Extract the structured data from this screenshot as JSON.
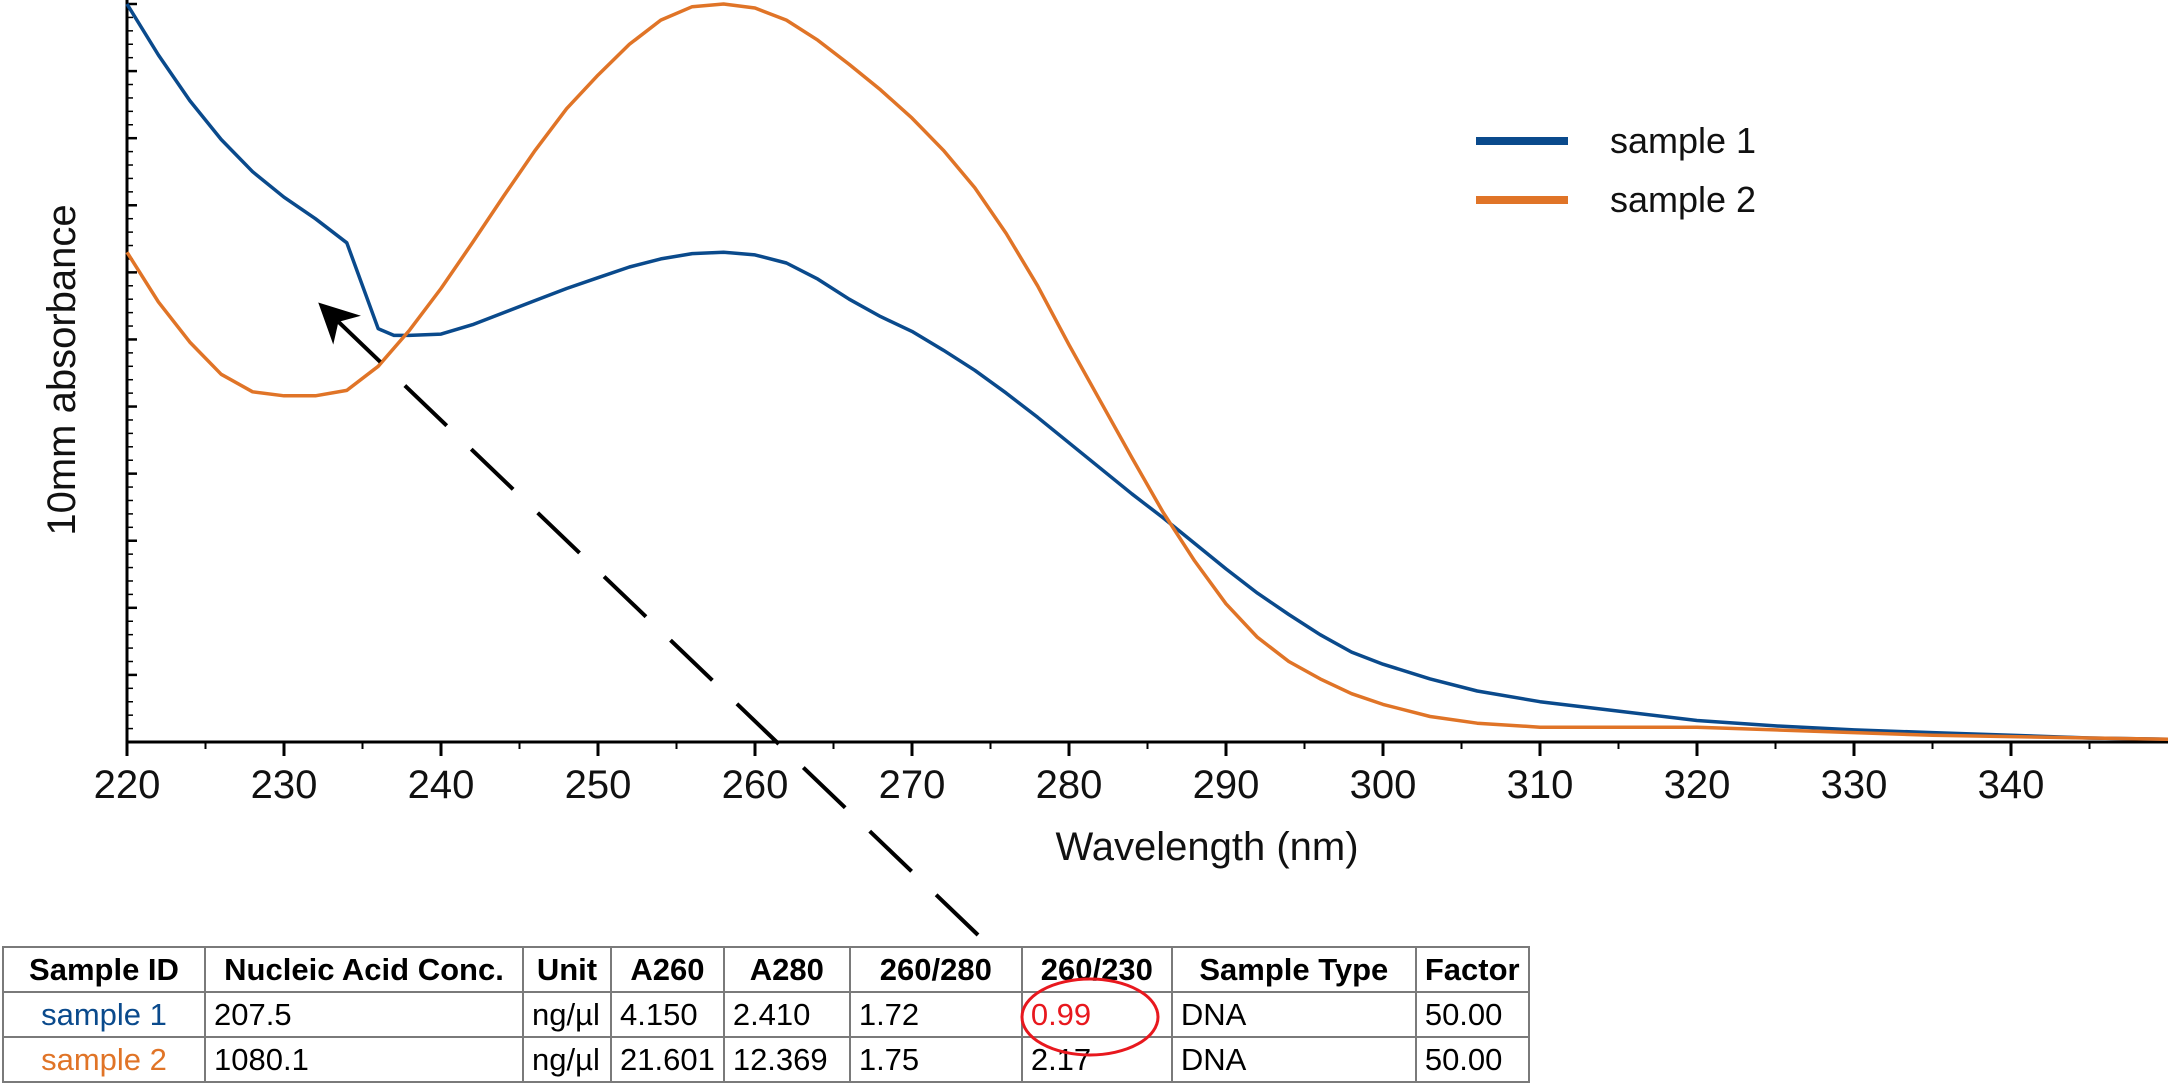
{
  "chart_data": {
    "type": "line",
    "title": "",
    "xlabel": "Wavelength (nm)",
    "ylabel": "10mm absorbance",
    "xlim": [
      220,
      350
    ],
    "ylim": [
      0,
      5.5
    ],
    "xticks": [
      220,
      230,
      240,
      250,
      260,
      270,
      280,
      290,
      300,
      310,
      320,
      330,
      340
    ],
    "grid": false,
    "legend_position": "top-right",
    "series": [
      {
        "name": "sample 1",
        "color": "#0a4a8c",
        "x": [
          220,
          222,
          224,
          226,
          228,
          230,
          232,
          234,
          236,
          237,
          238,
          240,
          242,
          244,
          246,
          248,
          250,
          252,
          254,
          256,
          258,
          260,
          262,
          264,
          266,
          268,
          270,
          272,
          274,
          276,
          278,
          280,
          282,
          284,
          286,
          288,
          290,
          292,
          294,
          296,
          298,
          300,
          303,
          306,
          310,
          315,
          320,
          325,
          330,
          335,
          340,
          345,
          350
        ],
        "y": [
          5.5,
          5.12,
          4.78,
          4.49,
          4.25,
          4.06,
          3.9,
          3.72,
          3.08,
          3.03,
          3.03,
          3.04,
          3.11,
          3.2,
          3.29,
          3.38,
          3.46,
          3.54,
          3.6,
          3.64,
          3.65,
          3.63,
          3.57,
          3.45,
          3.3,
          3.17,
          3.06,
          2.92,
          2.77,
          2.6,
          2.42,
          2.23,
          2.04,
          1.85,
          1.67,
          1.48,
          1.29,
          1.11,
          0.95,
          0.8,
          0.67,
          0.58,
          0.47,
          0.38,
          0.3,
          0.23,
          0.16,
          0.12,
          0.09,
          0.07,
          0.05,
          0.03,
          0.02
        ]
      },
      {
        "name": "sample 2",
        "color": "#e07427",
        "x": [
          220,
          222,
          224,
          226,
          228,
          230,
          232,
          234,
          236,
          238,
          240,
          242,
          244,
          246,
          248,
          250,
          252,
          254,
          256,
          258,
          260,
          262,
          264,
          266,
          268,
          270,
          272,
          274,
          276,
          278,
          280,
          282,
          284,
          286,
          288,
          290,
          292,
          294,
          296,
          298,
          300,
          303,
          306,
          310,
          315,
          320,
          325,
          330,
          335,
          340,
          345,
          350
        ],
        "y": [
          3.65,
          3.28,
          2.98,
          2.74,
          2.61,
          2.58,
          2.58,
          2.62,
          2.8,
          3.07,
          3.38,
          3.72,
          4.07,
          4.41,
          4.72,
          4.97,
          5.2,
          5.38,
          5.48,
          5.5,
          5.47,
          5.38,
          5.23,
          5.05,
          4.86,
          4.65,
          4.41,
          4.13,
          3.79,
          3.4,
          2.96,
          2.54,
          2.12,
          1.71,
          1.35,
          1.03,
          0.78,
          0.6,
          0.47,
          0.36,
          0.28,
          0.19,
          0.14,
          0.11,
          0.11,
          0.11,
          0.09,
          0.07,
          0.05,
          0.04,
          0.03,
          0.02
        ]
      }
    ],
    "legend": [
      {
        "label": "sample 1",
        "color": "#0a4a8c"
      },
      {
        "label": "sample 2",
        "color": "#e07427"
      }
    ]
  },
  "table": {
    "headers": [
      "Sample ID",
      "Nucleic Acid Conc.",
      "Unit",
      "A260",
      "A280",
      "260/280",
      "260/230",
      "Sample Type",
      "Factor"
    ],
    "rows": [
      {
        "sample_id": "sample 1",
        "color": "#0a4a8c",
        "conc": "207.5",
        "unit": "ng/µl",
        "a260": "4.150",
        "a280": "2.410",
        "r260_280": "1.72",
        "r260_230": "0.99",
        "type": "DNA",
        "factor": "50.00"
      },
      {
        "sample_id": "sample 2",
        "color": "#e07427",
        "conc": "1080.1",
        "unit": "ng/µl",
        "a260": "21.601",
        "a280": "12.369",
        "r260_280": "1.75",
        "r260_230": "2.17",
        "type": "DNA",
        "factor": "50.00"
      }
    ],
    "highlight_color": "#e8181e"
  }
}
